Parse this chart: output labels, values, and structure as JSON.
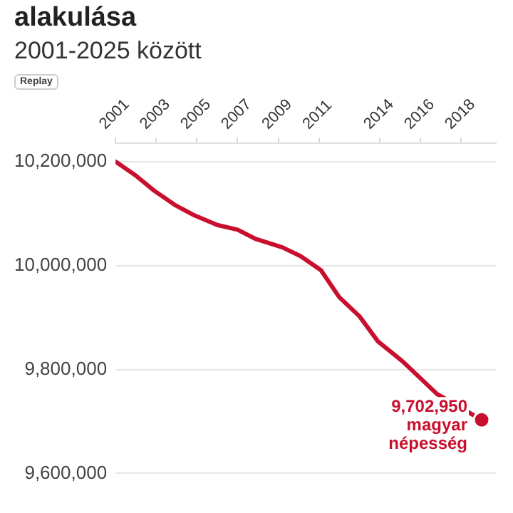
{
  "chart_data": {
    "type": "line",
    "title": "alakulása",
    "subtitle": "2001-2025 között",
    "annotations": [
      "Replay",
      {
        "text": "9,702,950 magyar népesség",
        "x": 2019,
        "y": 9702950
      }
    ],
    "x": [
      2001,
      2002,
      2002.9,
      2003.9,
      2004.8,
      2006,
      2007,
      2007.9,
      2009.2,
      2010.1,
      2011.1,
      2012,
      2013,
      2013.9,
      2015.1,
      2016.1,
      2016.8,
      2019
    ],
    "series": [
      {
        "color": "#c8102e",
        "values": [
          10200000,
          10173000,
          10144000,
          10117000,
          10098000,
          10078000,
          10069000,
          10051000,
          10035000,
          10018000,
          9991000,
          9939000,
          9902000,
          9854000,
          9816000,
          9779000,
          9753000,
          9702950
        ]
      }
    ],
    "xlim": [
      2001,
      2019.7
    ],
    "xticks": [
      2001,
      2003,
      2005,
      2007,
      2009,
      2011,
      2014,
      2016,
      2018
    ],
    "ylim": [
      9600000,
      10235000
    ],
    "yticks": [
      {
        "value": 9600000,
        "label": "9,600,000"
      },
      {
        "value": 9800000,
        "label": "9,800,000"
      },
      {
        "value": 10000000,
        "label": "10,000,000"
      },
      {
        "value": 10200000,
        "label": "10,200,000"
      }
    ],
    "grid": "y",
    "legend": false,
    "marker": "none",
    "line_style": "solid"
  }
}
